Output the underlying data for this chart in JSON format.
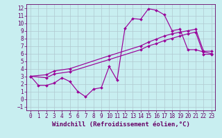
{
  "xlabel": "Windchill (Refroidissement éolien,°C)",
  "background_color": "#c8eef0",
  "grid_color": "#b0c8d0",
  "line_color": "#990099",
  "xlim": [
    -0.5,
    23.5
  ],
  "ylim": [
    -1.5,
    12.5
  ],
  "xticks": [
    0,
    1,
    2,
    3,
    4,
    5,
    6,
    7,
    8,
    9,
    10,
    11,
    12,
    13,
    14,
    15,
    16,
    17,
    18,
    19,
    20,
    21,
    22,
    23
  ],
  "yticks": [
    -1,
    0,
    1,
    2,
    3,
    4,
    5,
    6,
    7,
    8,
    9,
    10,
    11,
    12
  ],
  "line1_x": [
    0,
    1,
    2,
    3,
    4,
    5,
    6,
    7,
    8,
    9,
    10,
    11,
    12,
    13,
    14,
    15,
    16,
    17,
    18,
    19,
    20,
    21,
    22,
    23
  ],
  "line1_y": [
    3.0,
    1.8,
    1.8,
    2.1,
    2.8,
    2.3,
    1.0,
    0.3,
    1.3,
    1.5,
    4.3,
    2.5,
    9.3,
    10.6,
    10.5,
    11.9,
    11.7,
    11.1,
    9.0,
    9.2,
    6.5,
    6.5,
    6.2,
    6.0
  ],
  "line2_x": [
    0,
    2,
    3,
    5,
    10,
    14,
    15,
    16,
    17,
    18,
    19,
    20,
    21,
    22,
    23
  ],
  "line2_y": [
    3.0,
    2.8,
    3.3,
    3.6,
    5.2,
    6.5,
    7.0,
    7.3,
    7.7,
    8.0,
    8.3,
    8.6,
    8.8,
    5.9,
    5.9
  ],
  "line3_x": [
    0,
    2,
    3,
    5,
    10,
    14,
    15,
    16,
    17,
    18,
    19,
    20,
    21,
    22,
    23
  ],
  "line3_y": [
    3.0,
    3.2,
    3.7,
    4.0,
    5.7,
    7.0,
    7.5,
    7.9,
    8.3,
    8.6,
    8.8,
    9.0,
    9.2,
    6.3,
    6.3
  ],
  "font_color": "#660066",
  "tick_fontsize": 5.5,
  "xlabel_fontsize": 6.5,
  "marker": "D",
  "markersize": 2.0,
  "linewidth": 0.85
}
